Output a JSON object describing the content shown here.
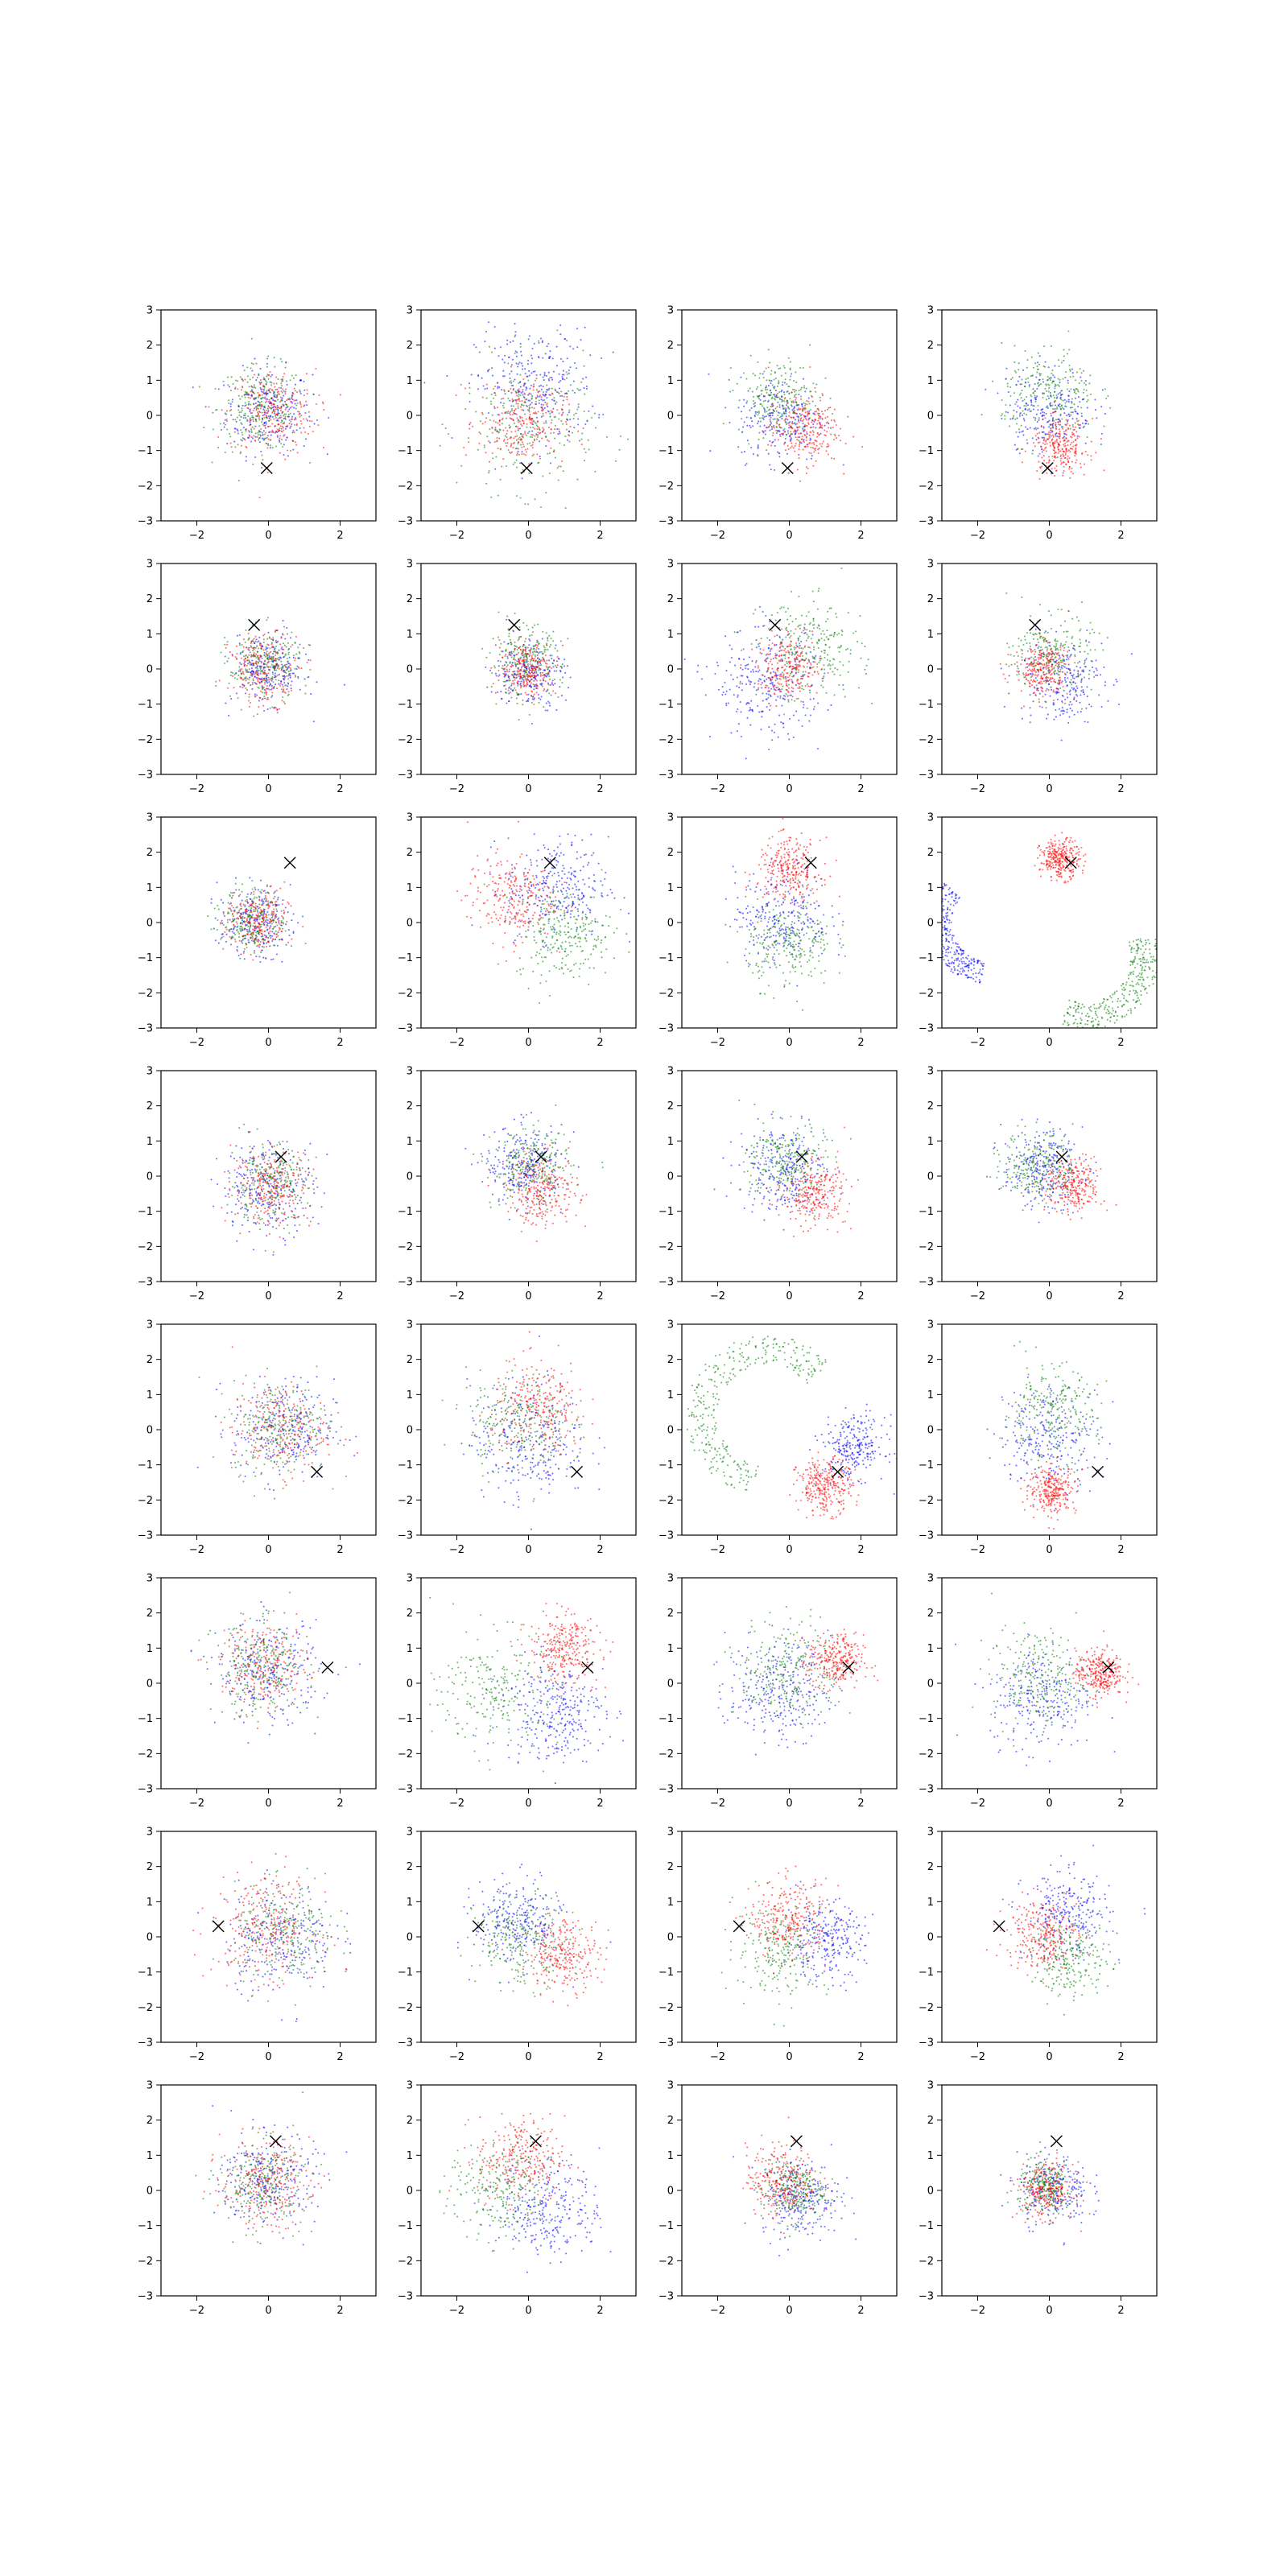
{
  "chart_data": {
    "type": "scatter",
    "layout": {
      "rows": 8,
      "cols": 4
    },
    "xlim": [
      -3,
      3
    ],
    "ylim": [
      -3,
      3
    ],
    "xticks": [
      -2,
      0,
      2
    ],
    "yticks": [
      -3,
      -2,
      -1,
      0,
      1,
      2,
      3
    ],
    "grid": false,
    "legend": "none",
    "series_colors": {
      "blue": "#0000ff",
      "green": "#008000",
      "red": "#ff0000"
    },
    "marker_color": "#000000",
    "rows": [
      {
        "marker": [
          -0.05,
          -1.5
        ],
        "panels": [
          {
            "blue": {
              "cx": 0,
              "cy": 0.1,
              "r": 1.1,
              "mode": "disk",
              "n": 260
            },
            "green": {
              "cx": -0.2,
              "cy": 0.2,
              "r": 1.1,
              "mode": "disk",
              "n": 260
            },
            "red": {
              "cx": 0.1,
              "cy": 0.1,
              "r": 1.1,
              "mode": "disk",
              "n": 260
            }
          },
          {
            "blue": {
              "cx": 0.2,
              "cy": 0.8,
              "r": 1.5,
              "mode": "disk",
              "n": 300
            },
            "green": {
              "cx": 0,
              "cy": -0.3,
              "r": 1.7,
              "mode": "disk",
              "n": 260
            },
            "red": {
              "cx": -0.2,
              "cy": -0.2,
              "r": 1.1,
              "mode": "disk",
              "n": 260
            }
          },
          {
            "blue": {
              "cx": -0.2,
              "cy": -0.1,
              "r": 1.1,
              "mode": "disk",
              "n": 240
            },
            "green": {
              "cx": -0.3,
              "cy": 0.5,
              "r": 1.0,
              "mode": "disk",
              "n": 240
            },
            "red": {
              "cx": 0.4,
              "cy": -0.4,
              "r": 0.9,
              "mode": "disk",
              "n": 260
            }
          },
          {
            "blue": {
              "cx": 0,
              "cy": 0.2,
              "r": 1.1,
              "mode": "disk",
              "n": 240
            },
            "green": {
              "cx": 0,
              "cy": 0.6,
              "r": 1.2,
              "mode": "disk",
              "n": 240
            },
            "red": {
              "cx": 0.3,
              "cy": -0.9,
              "r": 0.7,
              "mode": "disk",
              "n": 260
            }
          }
        ]
      },
      {
        "marker": [
          -0.4,
          1.25
        ],
        "panels": [
          {
            "blue": {
              "cx": 0,
              "cy": 0,
              "r": 0.9,
              "mode": "disk",
              "n": 240
            },
            "green": {
              "cx": -0.1,
              "cy": 0.1,
              "r": 0.9,
              "mode": "disk",
              "n": 240
            },
            "red": {
              "cx": -0.1,
              "cy": 0,
              "r": 0.9,
              "mode": "disk",
              "n": 240
            }
          },
          {
            "blue": {
              "cx": 0,
              "cy": -0.1,
              "r": 0.9,
              "mode": "disk",
              "n": 240
            },
            "green": {
              "cx": -0.1,
              "cy": 0.2,
              "r": 0.9,
              "mode": "disk",
              "n": 240
            },
            "red": {
              "cx": 0,
              "cy": 0,
              "r": 0.7,
              "mode": "disk",
              "n": 240
            }
          },
          {
            "blue": {
              "cx": -0.6,
              "cy": -0.4,
              "r": 1.4,
              "mode": "disk",
              "n": 280
            },
            "green": {
              "cx": 0.6,
              "cy": 0.5,
              "r": 1.3,
              "mode": "disk",
              "n": 260
            },
            "red": {
              "cx": 0,
              "cy": 0,
              "r": 0.8,
              "mode": "disk",
              "n": 240
            }
          },
          {
            "blue": {
              "cx": 0.3,
              "cy": -0.3,
              "r": 1.1,
              "mode": "disk",
              "n": 240
            },
            "green": {
              "cx": 0.1,
              "cy": 0.4,
              "r": 1.0,
              "mode": "disk",
              "n": 240
            },
            "red": {
              "cx": -0.2,
              "cy": 0,
              "r": 0.7,
              "mode": "disk",
              "n": 240
            }
          }
        ]
      },
      {
        "marker": [
          0.6,
          1.7
        ],
        "panels": [
          {
            "blue": {
              "cx": -0.4,
              "cy": 0,
              "r": 0.9,
              "mode": "disk",
              "n": 240
            },
            "green": {
              "cx": -0.4,
              "cy": 0.1,
              "r": 0.8,
              "mode": "disk",
              "n": 240
            },
            "red": {
              "cx": -0.3,
              "cy": 0,
              "r": 0.8,
              "mode": "disk",
              "n": 240
            }
          },
          {
            "blue": {
              "cx": 0.8,
              "cy": 1.0,
              "r": 1.3,
              "mode": "disk",
              "n": 280
            },
            "green": {
              "cx": 1.0,
              "cy": -0.3,
              "r": 1.2,
              "mode": "disk",
              "n": 260
            },
            "red": {
              "cx": -0.5,
              "cy": 0.7,
              "r": 1.1,
              "mode": "disk",
              "n": 260
            }
          },
          {
            "blue": {
              "cx": -0.2,
              "cy": 0.2,
              "r": 1.2,
              "mode": "disk",
              "n": 260
            },
            "green": {
              "cx": 0,
              "cy": -0.6,
              "r": 1.1,
              "mode": "disk",
              "n": 240
            },
            "red": {
              "cx": 0,
              "cy": 1.5,
              "r": 0.8,
              "mode": "disk",
              "n": 280
            }
          },
          {
            "blue": {
              "cx": -1.6,
              "cy": 0,
              "r": 1.5,
              "mode": "ring",
              "a0": 140,
              "a1": 260,
              "n": 320
            },
            "green": {
              "cx": 1.0,
              "cy": -1.0,
              "r": 1.7,
              "mode": "ring",
              "a0": 250,
              "a1": 20,
              "n": 300
            },
            "red": {
              "cx": 0.3,
              "cy": 1.8,
              "r": 0.5,
              "mode": "disk",
              "n": 300
            }
          }
        ]
      },
      {
        "marker": [
          0.35,
          0.55
        ],
        "panels": [
          {
            "blue": {
              "cx": 0,
              "cy": -0.3,
              "r": 1.2,
              "mode": "disk",
              "n": 260
            },
            "green": {
              "cx": 0,
              "cy": -0.2,
              "r": 1.0,
              "mode": "disk",
              "n": 240
            },
            "red": {
              "cx": 0.1,
              "cy": -0.3,
              "r": 1.0,
              "mode": "disk",
              "n": 240
            }
          },
          {
            "blue": {
              "cx": -0.1,
              "cy": 0.3,
              "r": 1.0,
              "mode": "disk",
              "n": 260
            },
            "green": {
              "cx": 0.1,
              "cy": 0.2,
              "r": 1.0,
              "mode": "disk",
              "n": 240
            },
            "red": {
              "cx": 0.4,
              "cy": -0.4,
              "r": 0.9,
              "mode": "disk",
              "n": 260
            }
          },
          {
            "blue": {
              "cx": -0.2,
              "cy": 0.2,
              "r": 1.1,
              "mode": "disk",
              "n": 260
            },
            "green": {
              "cx": -0.1,
              "cy": 0.4,
              "r": 1.0,
              "mode": "disk",
              "n": 240
            },
            "red": {
              "cx": 0.7,
              "cy": -0.5,
              "r": 0.8,
              "mode": "disk",
              "n": 260
            }
          },
          {
            "blue": {
              "cx": -0.2,
              "cy": 0.2,
              "r": 1.0,
              "mode": "disk",
              "n": 260
            },
            "green": {
              "cx": -0.3,
              "cy": 0.3,
              "r": 0.9,
              "mode": "disk",
              "n": 240
            },
            "red": {
              "cx": 0.7,
              "cy": -0.3,
              "r": 0.7,
              "mode": "disk",
              "n": 260
            }
          }
        ]
      },
      {
        "marker": [
          1.35,
          -1.2
        ],
        "panels": [
          {
            "blue": {
              "cx": 0.4,
              "cy": 0,
              "r": 1.3,
              "mode": "disk",
              "n": 260
            },
            "green": {
              "cx": 0.3,
              "cy": 0.1,
              "r": 1.2,
              "mode": "disk",
              "n": 240
            },
            "red": {
              "cx": 0.3,
              "cy": 0,
              "r": 1.2,
              "mode": "disk",
              "n": 240
            }
          },
          {
            "blue": {
              "cx": 0,
              "cy": -0.3,
              "r": 1.5,
              "mode": "disk",
              "n": 280
            },
            "green": {
              "cx": -0.3,
              "cy": 0.2,
              "r": 1.3,
              "mode": "disk",
              "n": 240
            },
            "red": {
              "cx": 0.3,
              "cy": 0.6,
              "r": 1.2,
              "mode": "disk",
              "n": 260
            }
          },
          {
            "blue": {
              "cx": 1.8,
              "cy": -0.5,
              "r": 0.8,
              "mode": "disk",
              "n": 260
            },
            "green": {
              "cx": -0.6,
              "cy": 0.4,
              "r": 1.9,
              "mode": "ring",
              "a0": 40,
              "a1": 260,
              "n": 320
            },
            "red": {
              "cx": 1.0,
              "cy": -1.6,
              "r": 0.7,
              "mode": "disk",
              "n": 300
            }
          },
          {
            "blue": {
              "cx": 0,
              "cy": -0.2,
              "r": 1.3,
              "mode": "disk",
              "n": 260
            },
            "green": {
              "cx": 0,
              "cy": 0.5,
              "r": 1.2,
              "mode": "disk",
              "n": 240
            },
            "red": {
              "cx": 0.1,
              "cy": -1.7,
              "r": 0.6,
              "mode": "disk",
              "n": 280
            }
          }
        ]
      },
      {
        "marker": [
          1.65,
          0.45
        ],
        "panels": [
          {
            "blue": {
              "cx": 0,
              "cy": 0.3,
              "r": 1.3,
              "mode": "disk",
              "n": 260
            },
            "green": {
              "cx": -0.2,
              "cy": 0.4,
              "r": 1.2,
              "mode": "disk",
              "n": 240
            },
            "red": {
              "cx": -0.1,
              "cy": 0.5,
              "r": 1.1,
              "mode": "disk",
              "n": 240
            }
          },
          {
            "blue": {
              "cx": 0.7,
              "cy": -0.8,
              "r": 1.3,
              "mode": "disk",
              "n": 300
            },
            "green": {
              "cx": -0.8,
              "cy": -0.2,
              "r": 1.5,
              "mode": "disk",
              "n": 240
            },
            "red": {
              "cx": 1.0,
              "cy": 1.0,
              "r": 0.9,
              "mode": "disk",
              "n": 280
            }
          },
          {
            "blue": {
              "cx": -0.3,
              "cy": -0.2,
              "r": 1.3,
              "mode": "disk",
              "n": 280
            },
            "green": {
              "cx": 0,
              "cy": 0.4,
              "r": 1.3,
              "mode": "disk",
              "n": 240
            },
            "red": {
              "cx": 1.3,
              "cy": 0.6,
              "r": 0.7,
              "mode": "disk",
              "n": 280
            }
          },
          {
            "blue": {
              "cx": -0.2,
              "cy": -0.4,
              "r": 1.3,
              "mode": "disk",
              "n": 260
            },
            "green": {
              "cx": -0.3,
              "cy": 0.2,
              "r": 1.2,
              "mode": "disk",
              "n": 240
            },
            "red": {
              "cx": 1.4,
              "cy": 0.3,
              "r": 0.6,
              "mode": "disk",
              "n": 300
            }
          }
        ]
      },
      {
        "marker": [
          -1.4,
          0.3
        ],
        "panels": [
          {
            "blue": {
              "cx": 0.3,
              "cy": 0,
              "r": 1.4,
              "mode": "disk",
              "n": 260
            },
            "green": {
              "cx": 0.5,
              "cy": 0,
              "r": 1.3,
              "mode": "disk",
              "n": 240
            },
            "red": {
              "cx": -0.1,
              "cy": 0.3,
              "r": 1.3,
              "mode": "disk",
              "n": 260
            }
          },
          {
            "blue": {
              "cx": -0.3,
              "cy": 0.4,
              "r": 1.1,
              "mode": "disk",
              "n": 260
            },
            "green": {
              "cx": -0.2,
              "cy": -0.1,
              "r": 1.2,
              "mode": "disk",
              "n": 240
            },
            "red": {
              "cx": 1.0,
              "cy": -0.5,
              "r": 0.9,
              "mode": "disk",
              "n": 260
            }
          },
          {
            "blue": {
              "cx": 1.0,
              "cy": -0.1,
              "r": 1.0,
              "mode": "disk",
              "n": 260
            },
            "green": {
              "cx": -0.2,
              "cy": -0.3,
              "r": 1.2,
              "mode": "disk",
              "n": 240
            },
            "red": {
              "cx": 0,
              "cy": 0.5,
              "r": 1.0,
              "mode": "disk",
              "n": 260
            }
          },
          {
            "blue": {
              "cx": 0.5,
              "cy": 0.6,
              "r": 1.1,
              "mode": "disk",
              "n": 260
            },
            "green": {
              "cx": 0.6,
              "cy": -0.6,
              "r": 1.0,
              "mode": "disk",
              "n": 240
            },
            "red": {
              "cx": -0.2,
              "cy": 0.1,
              "r": 0.9,
              "mode": "disk",
              "n": 260
            }
          }
        ]
      },
      {
        "marker": [
          0.2,
          1.4
        ],
        "panels": [
          {
            "blue": {
              "cx": 0,
              "cy": 0.3,
              "r": 1.2,
              "mode": "disk",
              "n": 260
            },
            "green": {
              "cx": -0.2,
              "cy": 0.2,
              "r": 1.1,
              "mode": "disk",
              "n": 240
            },
            "red": {
              "cx": -0.1,
              "cy": 0.2,
              "r": 1.1,
              "mode": "disk",
              "n": 260
            }
          },
          {
            "blue": {
              "cx": 0.6,
              "cy": -0.5,
              "r": 1.3,
              "mode": "disk",
              "n": 280
            },
            "green": {
              "cx": -0.8,
              "cy": 0,
              "r": 1.3,
              "mode": "disk",
              "n": 240
            },
            "red": {
              "cx": -0.2,
              "cy": 0.9,
              "r": 1.1,
              "mode": "disk",
              "n": 260
            }
          },
          {
            "blue": {
              "cx": 0.3,
              "cy": -0.2,
              "r": 1.0,
              "mode": "disk",
              "n": 260
            },
            "green": {
              "cx": 0.1,
              "cy": 0,
              "r": 0.8,
              "mode": "disk",
              "n": 240
            },
            "red": {
              "cx": -0.2,
              "cy": 0.3,
              "r": 0.9,
              "mode": "disk",
              "n": 260
            }
          },
          {
            "blue": {
              "cx": 0.1,
              "cy": 0,
              "r": 0.9,
              "mode": "disk",
              "n": 240
            },
            "green": {
              "cx": -0.1,
              "cy": 0.1,
              "r": 0.7,
              "mode": "disk",
              "n": 240
            },
            "red": {
              "cx": -0.1,
              "cy": 0,
              "r": 0.7,
              "mode": "disk",
              "n": 240
            }
          }
        ]
      }
    ]
  }
}
